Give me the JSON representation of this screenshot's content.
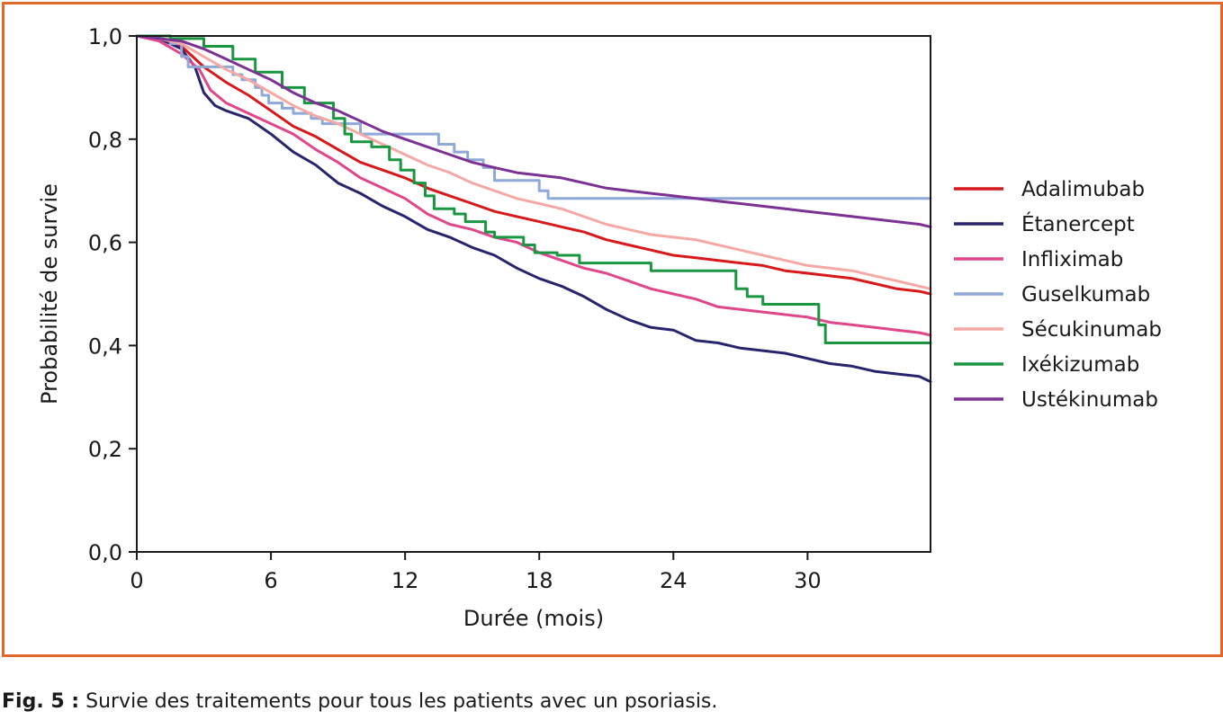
{
  "colors": {
    "frame": "#e06a2c"
  },
  "caption": {
    "label": "Fig. 5 :",
    "text": " Survie des traitements pour tous les patients avec un psoriasis."
  },
  "chart_data": {
    "type": "line",
    "title": "",
    "xlabel": "Durée (mois)",
    "ylabel": "Probabilité de survie",
    "xlim": [
      0,
      35.5
    ],
    "ylim": [
      0,
      1.0
    ],
    "xticks": [
      0,
      6,
      12,
      18,
      24,
      30
    ],
    "xtick_labels": [
      "0",
      "6",
      "12",
      "18",
      "24",
      "30"
    ],
    "yticks": [
      0,
      0.2,
      0.4,
      0.6,
      0.8,
      1.0
    ],
    "ytick_labels": [
      "0,0",
      "0,2",
      "0,4",
      "0,6",
      "0,8",
      "1,0"
    ],
    "grid": false,
    "legend_position": "right",
    "series": [
      {
        "name": "Adalimubab",
        "color": "#d7191c",
        "step": false,
        "points": [
          [
            0,
            1.0
          ],
          [
            1,
            0.995
          ],
          [
            2,
            0.98
          ],
          [
            3,
            0.94
          ],
          [
            4,
            0.91
          ],
          [
            5,
            0.885
          ],
          [
            6,
            0.855
          ],
          [
            7,
            0.825
          ],
          [
            8,
            0.805
          ],
          [
            9,
            0.78
          ],
          [
            10,
            0.755
          ],
          [
            11,
            0.74
          ],
          [
            12,
            0.725
          ],
          [
            13,
            0.705
          ],
          [
            14,
            0.69
          ],
          [
            15,
            0.675
          ],
          [
            16,
            0.66
          ],
          [
            17,
            0.65
          ],
          [
            18,
            0.64
          ],
          [
            19,
            0.63
          ],
          [
            20,
            0.62
          ],
          [
            21,
            0.605
          ],
          [
            22,
            0.595
          ],
          [
            23,
            0.585
          ],
          [
            24,
            0.575
          ],
          [
            25,
            0.57
          ],
          [
            26,
            0.565
          ],
          [
            27,
            0.56
          ],
          [
            28,
            0.555
          ],
          [
            29,
            0.545
          ],
          [
            30,
            0.54
          ],
          [
            31,
            0.535
          ],
          [
            32,
            0.53
          ],
          [
            33,
            0.52
          ],
          [
            34,
            0.51
          ],
          [
            35,
            0.505
          ],
          [
            35.5,
            0.5
          ]
        ]
      },
      {
        "name": "Étanercept",
        "color": "#27246e",
        "step": false,
        "points": [
          [
            0,
            1.0
          ],
          [
            1,
            0.995
          ],
          [
            2,
            0.975
          ],
          [
            2.6,
            0.94
          ],
          [
            3,
            0.89
          ],
          [
            3.5,
            0.865
          ],
          [
            4,
            0.855
          ],
          [
            5,
            0.84
          ],
          [
            6,
            0.81
          ],
          [
            7,
            0.775
          ],
          [
            8,
            0.75
          ],
          [
            9,
            0.715
          ],
          [
            10,
            0.695
          ],
          [
            11,
            0.67
          ],
          [
            12,
            0.65
          ],
          [
            13,
            0.625
          ],
          [
            14,
            0.61
          ],
          [
            15,
            0.59
          ],
          [
            16,
            0.575
          ],
          [
            17,
            0.55
          ],
          [
            18,
            0.53
          ],
          [
            19,
            0.515
          ],
          [
            20,
            0.495
          ],
          [
            21,
            0.47
          ],
          [
            22,
            0.45
          ],
          [
            23,
            0.435
          ],
          [
            24,
            0.43
          ],
          [
            25,
            0.41
          ],
          [
            26,
            0.405
          ],
          [
            27,
            0.395
          ],
          [
            28,
            0.39
          ],
          [
            29,
            0.385
          ],
          [
            30,
            0.375
          ],
          [
            31,
            0.365
          ],
          [
            32,
            0.36
          ],
          [
            33,
            0.35
          ],
          [
            34,
            0.345
          ],
          [
            35,
            0.34
          ],
          [
            35.5,
            0.33
          ]
        ]
      },
      {
        "name": "Infliximab",
        "color": "#e0468a",
        "step": false,
        "points": [
          [
            0,
            1.0
          ],
          [
            1,
            0.99
          ],
          [
            2,
            0.965
          ],
          [
            2.8,
            0.935
          ],
          [
            3.3,
            0.895
          ],
          [
            4,
            0.87
          ],
          [
            5,
            0.85
          ],
          [
            6,
            0.83
          ],
          [
            7,
            0.81
          ],
          [
            8,
            0.78
          ],
          [
            9,
            0.755
          ],
          [
            10,
            0.725
          ],
          [
            11,
            0.705
          ],
          [
            12,
            0.685
          ],
          [
            13,
            0.655
          ],
          [
            14,
            0.635
          ],
          [
            15,
            0.625
          ],
          [
            16,
            0.61
          ],
          [
            17,
            0.6
          ],
          [
            18,
            0.58
          ],
          [
            19,
            0.565
          ],
          [
            20,
            0.55
          ],
          [
            21,
            0.54
          ],
          [
            22,
            0.525
          ],
          [
            23,
            0.51
          ],
          [
            24,
            0.5
          ],
          [
            25,
            0.49
          ],
          [
            26,
            0.475
          ],
          [
            27,
            0.47
          ],
          [
            28,
            0.465
          ],
          [
            29,
            0.46
          ],
          [
            30,
            0.455
          ],
          [
            31,
            0.445
          ],
          [
            32,
            0.44
          ],
          [
            33,
            0.435
          ],
          [
            34,
            0.43
          ],
          [
            35,
            0.425
          ],
          [
            35.5,
            0.42
          ]
        ]
      },
      {
        "name": "Guselkumab",
        "color": "#8fa8d8",
        "step": true,
        "points": [
          [
            0,
            1.0
          ],
          [
            1.5,
            0.985
          ],
          [
            2,
            0.96
          ],
          [
            2.3,
            0.94
          ],
          [
            4.3,
            0.925
          ],
          [
            4.7,
            0.915
          ],
          [
            5.3,
            0.9
          ],
          [
            5.6,
            0.885
          ],
          [
            5.9,
            0.87
          ],
          [
            6.5,
            0.86
          ],
          [
            7,
            0.85
          ],
          [
            7.8,
            0.84
          ],
          [
            8.3,
            0.83
          ],
          [
            10,
            0.81
          ],
          [
            13.5,
            0.79
          ],
          [
            14.2,
            0.775
          ],
          [
            14.8,
            0.76
          ],
          [
            15.5,
            0.745
          ],
          [
            16,
            0.72
          ],
          [
            18,
            0.7
          ],
          [
            18.4,
            0.685
          ],
          [
            35.5,
            0.685
          ]
        ]
      },
      {
        "name": "Sécukinumab",
        "color": "#f4a9a5",
        "step": false,
        "points": [
          [
            0,
            1.0
          ],
          [
            1,
            0.995
          ],
          [
            2,
            0.985
          ],
          [
            3,
            0.96
          ],
          [
            4,
            0.935
          ],
          [
            5,
            0.915
          ],
          [
            6,
            0.89
          ],
          [
            7,
            0.865
          ],
          [
            8,
            0.845
          ],
          [
            9,
            0.83
          ],
          [
            10,
            0.81
          ],
          [
            11,
            0.79
          ],
          [
            12,
            0.77
          ],
          [
            13,
            0.75
          ],
          [
            14,
            0.735
          ],
          [
            15,
            0.715
          ],
          [
            16,
            0.7
          ],
          [
            17,
            0.685
          ],
          [
            18,
            0.675
          ],
          [
            19,
            0.665
          ],
          [
            20,
            0.65
          ],
          [
            21,
            0.635
          ],
          [
            22,
            0.625
          ],
          [
            23,
            0.615
          ],
          [
            24,
            0.61
          ],
          [
            25,
            0.605
          ],
          [
            26,
            0.595
          ],
          [
            27,
            0.585
          ],
          [
            28,
            0.575
          ],
          [
            29,
            0.565
          ],
          [
            30,
            0.555
          ],
          [
            31,
            0.55
          ],
          [
            32,
            0.545
          ],
          [
            33,
            0.535
          ],
          [
            34,
            0.525
          ],
          [
            35,
            0.515
          ],
          [
            35.5,
            0.51
          ]
        ]
      },
      {
        "name": "Ixékizumab",
        "color": "#1a9641",
        "step": true,
        "points": [
          [
            0,
            1.0
          ],
          [
            1.5,
            0.995
          ],
          [
            3,
            0.98
          ],
          [
            4.3,
            0.955
          ],
          [
            5.3,
            0.93
          ],
          [
            6.5,
            0.9
          ],
          [
            7.5,
            0.87
          ],
          [
            8.8,
            0.84
          ],
          [
            9.3,
            0.81
          ],
          [
            9.6,
            0.795
          ],
          [
            10.5,
            0.785
          ],
          [
            11.3,
            0.76
          ],
          [
            11.8,
            0.74
          ],
          [
            12.4,
            0.715
          ],
          [
            12.9,
            0.69
          ],
          [
            13.3,
            0.665
          ],
          [
            14.2,
            0.655
          ],
          [
            14.7,
            0.64
          ],
          [
            15.6,
            0.62
          ],
          [
            16,
            0.61
          ],
          [
            17.3,
            0.595
          ],
          [
            17.8,
            0.58
          ],
          [
            18.8,
            0.575
          ],
          [
            19.8,
            0.56
          ],
          [
            23,
            0.545
          ],
          [
            26.8,
            0.51
          ],
          [
            27.3,
            0.495
          ],
          [
            28,
            0.48
          ],
          [
            30.5,
            0.44
          ],
          [
            30.8,
            0.405
          ],
          [
            35.5,
            0.405
          ]
        ]
      },
      {
        "name": "Ustékinumab",
        "color": "#7b3294",
        "step": false,
        "points": [
          [
            0,
            1.0
          ],
          [
            1,
            0.995
          ],
          [
            2,
            0.99
          ],
          [
            3,
            0.975
          ],
          [
            4,
            0.955
          ],
          [
            5,
            0.935
          ],
          [
            6,
            0.915
          ],
          [
            7,
            0.89
          ],
          [
            8,
            0.87
          ],
          [
            9,
            0.855
          ],
          [
            10,
            0.835
          ],
          [
            11,
            0.815
          ],
          [
            12,
            0.8
          ],
          [
            13,
            0.785
          ],
          [
            14,
            0.77
          ],
          [
            15,
            0.755
          ],
          [
            16,
            0.745
          ],
          [
            17,
            0.735
          ],
          [
            18,
            0.73
          ],
          [
            19,
            0.725
          ],
          [
            20,
            0.715
          ],
          [
            21,
            0.705
          ],
          [
            22,
            0.7
          ],
          [
            23,
            0.695
          ],
          [
            24,
            0.69
          ],
          [
            25,
            0.685
          ],
          [
            26,
            0.68
          ],
          [
            27,
            0.675
          ],
          [
            28,
            0.67
          ],
          [
            29,
            0.665
          ],
          [
            30,
            0.66
          ],
          [
            31,
            0.655
          ],
          [
            32,
            0.65
          ],
          [
            33,
            0.645
          ],
          [
            34,
            0.64
          ],
          [
            35,
            0.635
          ],
          [
            35.5,
            0.63
          ]
        ]
      }
    ]
  }
}
